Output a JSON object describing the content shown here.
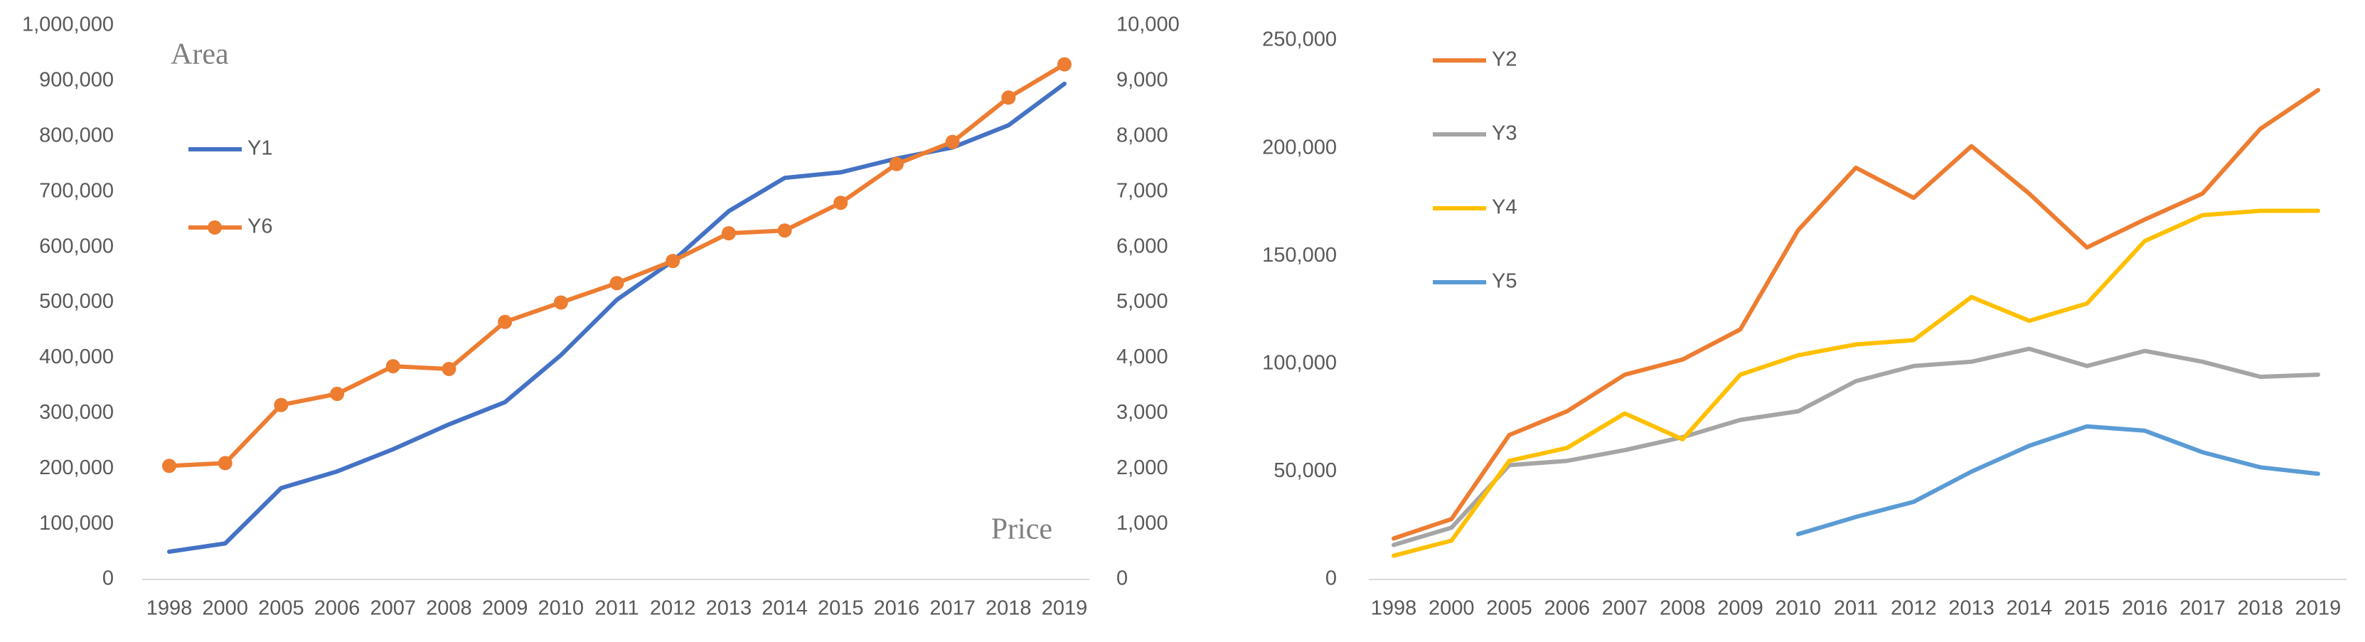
{
  "chart_data": [
    {
      "type": "line",
      "annotations": [
        "Area",
        "Price"
      ],
      "categories": [
        "1998",
        "2000",
        "2005",
        "2006",
        "2007",
        "2008",
        "2009",
        "2010",
        "2011",
        "2012",
        "2013",
        "2014",
        "2015",
        "2016",
        "2017",
        "2018",
        "2019"
      ],
      "series": [
        {
          "name": "Y1",
          "color": "#4472c4",
          "values": [
            50000,
            65000,
            165000,
            195000,
            235000,
            280000,
            320000,
            405000,
            505000,
            575000,
            665000,
            725000,
            735000,
            760000,
            780000,
            820000,
            895000
          ]
        },
        {
          "name": "Y6",
          "color": "#ed7d31",
          "axis": "y2",
          "marker": "circle",
          "values": [
            2050,
            2100,
            3150,
            3350,
            3850,
            3800,
            4650,
            5000,
            5350,
            5750,
            6250,
            6300,
            6800,
            7500,
            7900,
            8700,
            9300
          ]
        }
      ],
      "ylim": [
        0,
        1000000
      ],
      "yticks": [
        0,
        {
          "value": 100000,
          "label": "100,000"
        },
        {
          "value": 200000,
          "label": "200,000"
        },
        {
          "value": 300000,
          "label": "300,000"
        },
        {
          "value": 400000,
          "label": "400,000"
        },
        {
          "value": 500000,
          "label": "500,000"
        },
        {
          "value": 600000,
          "label": "600,000"
        },
        {
          "value": 700000,
          "label": "700,000"
        },
        {
          "value": 800000,
          "label": "800,000"
        },
        {
          "value": 900000,
          "label": "900,000"
        },
        {
          "value": 1000000,
          "label": "1,000,000"
        }
      ],
      "y2lim": [
        0,
        10000
      ],
      "y2ticks": [
        0,
        {
          "value": 1000,
          "label": "1,000"
        },
        {
          "value": 2000,
          "label": "2,000"
        },
        {
          "value": 3000,
          "label": "3,000"
        },
        {
          "value": 4000,
          "label": "4,000"
        },
        {
          "value": 5000,
          "label": "5,000"
        },
        {
          "value": 6000,
          "label": "6,000"
        },
        {
          "value": 7000,
          "label": "7,000"
        },
        {
          "value": 8000,
          "label": "8,000"
        },
        {
          "value": 9000,
          "label": "9,000"
        },
        {
          "value": 10000,
          "label": "10,000"
        }
      ],
      "grid": false,
      "legend": "upper left"
    },
    {
      "type": "line",
      "categories": [
        "1998",
        "2000",
        "2005",
        "2006",
        "2007",
        "2008",
        "2009",
        "2010",
        "2011",
        "2012",
        "2013",
        "2014",
        "2015",
        "2016",
        "2017",
        "2018",
        "2019"
      ],
      "series": [
        {
          "name": "Y2",
          "color": "#ed7d31",
          "values": [
            19000,
            28000,
            67000,
            78000,
            95000,
            102000,
            116000,
            162000,
            191000,
            177000,
            201000,
            179000,
            154000,
            167000,
            179000,
            209000,
            227000
          ]
        },
        {
          "name": "Y3",
          "color": "#a5a5a5",
          "values": [
            16000,
            24000,
            53000,
            55000,
            60000,
            66000,
            74000,
            78000,
            92000,
            99000,
            101000,
            107000,
            99000,
            106000,
            101000,
            94000,
            95000
          ]
        },
        {
          "name": "Y4",
          "color": "#ffc000",
          "values": [
            11000,
            18000,
            55000,
            61000,
            77000,
            65000,
            95000,
            104000,
            109000,
            111000,
            131000,
            120000,
            128000,
            157000,
            169000,
            171000,
            171000
          ]
        },
        {
          "name": "Y5",
          "color": "#5b9bd5",
          "values": [
            null,
            null,
            null,
            null,
            null,
            null,
            null,
            21000,
            29000,
            36000,
            50000,
            62000,
            71000,
            69000,
            59000,
            52000,
            49000
          ]
        }
      ],
      "ylim": [
        0,
        250000
      ],
      "yticks": [
        0,
        {
          "value": 50000,
          "label": "50,000"
        },
        {
          "value": 100000,
          "label": "100,000"
        },
        {
          "value": 150000,
          "label": "150,000"
        },
        {
          "value": 200000,
          "label": "200,000"
        },
        {
          "value": 250000,
          "label": "250,000"
        }
      ],
      "grid": false,
      "legend": "upper left"
    }
  ]
}
